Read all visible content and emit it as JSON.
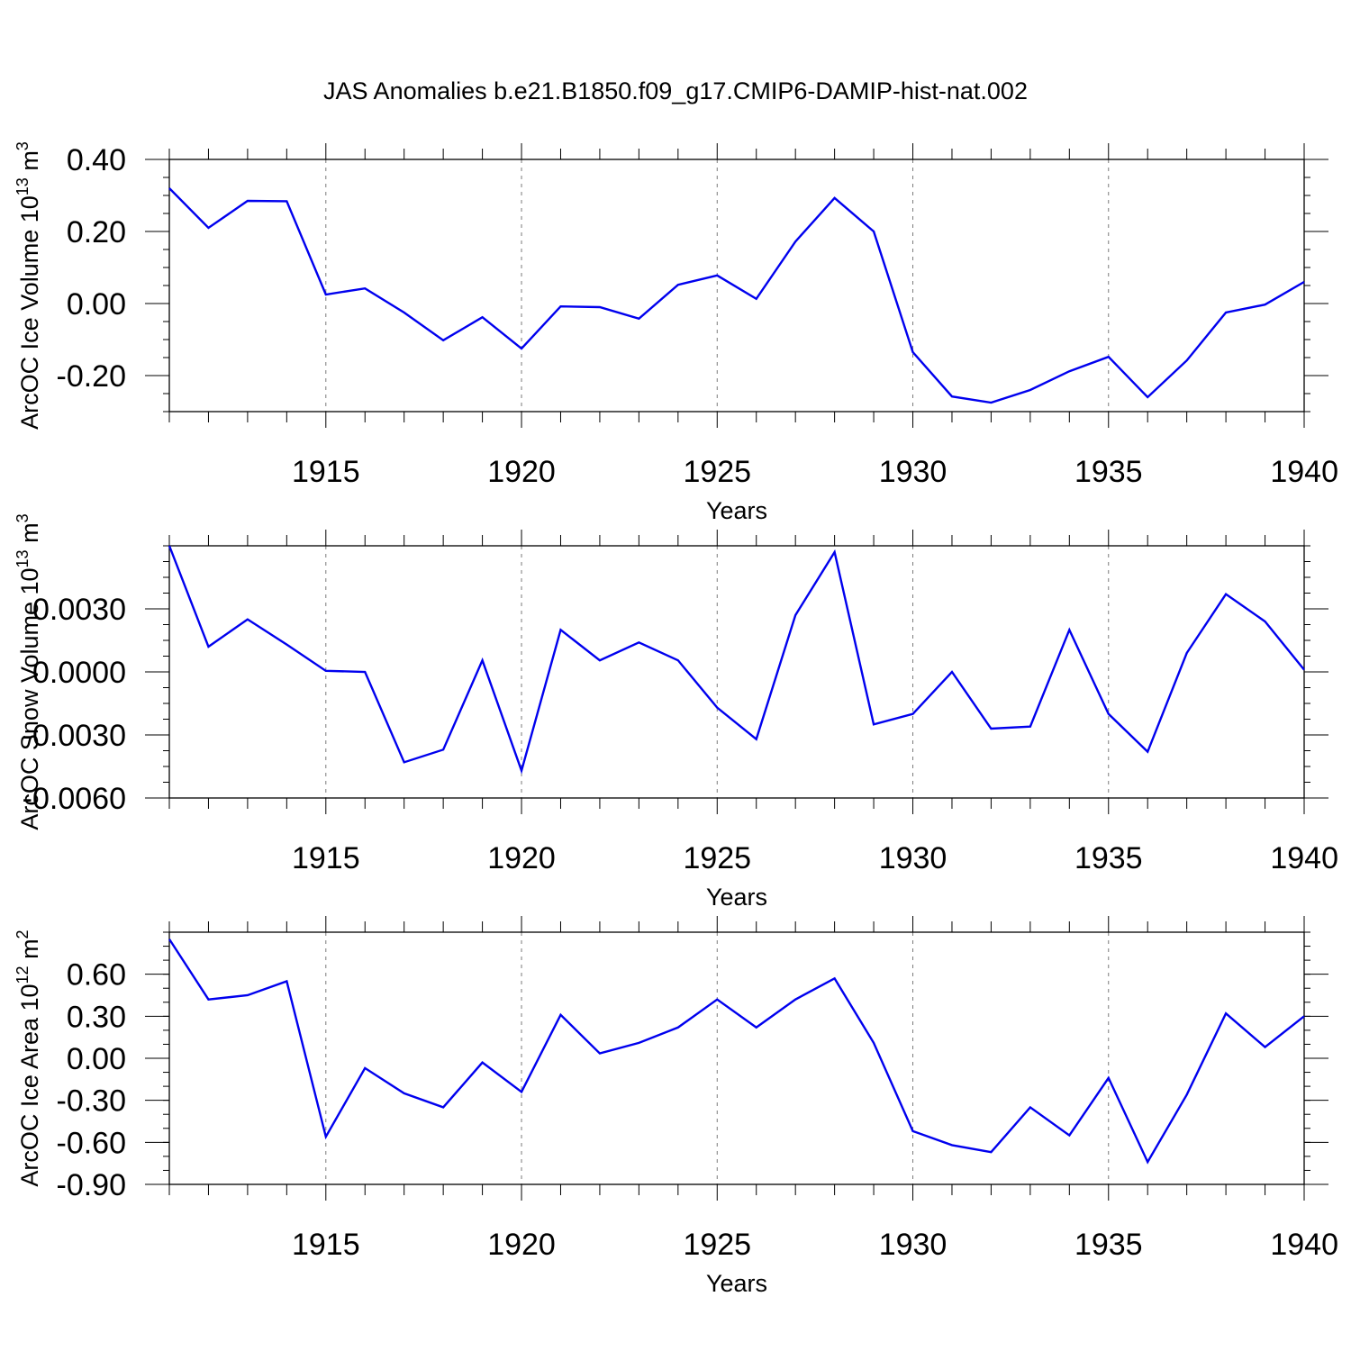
{
  "figure": {
    "title": "JAS Anomalies b.e21.B1850.f09_g17.CMIP6-DAMIP-hist-nat.002",
    "line_color": "#0000ee",
    "grid_color": "#7a7a7a"
  },
  "chart_data": [
    {
      "type": "line",
      "title": "JAS Anomalies b.e21.B1850.f09_g17.CMIP6-DAMIP-hist-nat.002",
      "xlabel": "Years",
      "ylabel": "ArcOC Ice Volume 10",
      "ylabel_sup": "13",
      "ylabel_unit": " m",
      "ylabel_unit_sup": "3",
      "xlim": [
        1911,
        1940
      ],
      "ylim": [
        -0.3,
        0.4
      ],
      "x_ticks": [
        1915,
        1920,
        1925,
        1930,
        1935,
        1940
      ],
      "x_tick_labels": [
        "1915",
        "1920",
        "1925",
        "1930",
        "1935",
        "1940"
      ],
      "y_ticks": [
        0.4,
        0.2,
        0.0,
        -0.2
      ],
      "y_tick_labels": [
        "0.40",
        "0.20",
        "0.00",
        "-0.20"
      ],
      "y_minor_step": 0.05,
      "grid": "vertical dashed at major x ticks",
      "series": [
        {
          "name": "ArcOC Ice Volume",
          "x": [
            1911,
            1912,
            1913,
            1914,
            1915,
            1916,
            1917,
            1918,
            1919,
            1920,
            1921,
            1922,
            1923,
            1924,
            1925,
            1926,
            1927,
            1928,
            1929,
            1930,
            1931,
            1932,
            1933,
            1934,
            1935,
            1936,
            1937,
            1938,
            1939,
            1940
          ],
          "values": [
            0.32,
            0.21,
            0.285,
            0.284,
            0.025,
            0.042,
            -0.025,
            -0.102,
            -0.038,
            -0.125,
            -0.008,
            -0.01,
            -0.042,
            0.052,
            0.078,
            0.013,
            0.172,
            0.293,
            0.2,
            -0.135,
            -0.258,
            -0.275,
            -0.24,
            -0.188,
            -0.148,
            -0.26,
            -0.158,
            -0.025,
            -0.003,
            0.06
          ]
        }
      ]
    },
    {
      "type": "line",
      "xlabel": "Years",
      "ylabel": "ArcOC Snow Volume 10",
      "ylabel_sup": "13",
      "ylabel_unit": " m",
      "ylabel_unit_sup": "3",
      "xlim": [
        1911,
        1940
      ],
      "ylim": [
        -0.006,
        0.006
      ],
      "x_ticks": [
        1915,
        1920,
        1925,
        1930,
        1935,
        1940
      ],
      "x_tick_labels": [
        "1915",
        "1920",
        "1925",
        "1930",
        "1935",
        "1940"
      ],
      "y_ticks": [
        0.003,
        0.0,
        -0.003,
        -0.006
      ],
      "y_tick_labels": [
        "0.0030",
        "0.0000",
        "-0.0030",
        "-0.0060"
      ],
      "y_minor_step": 0.00075,
      "grid": "vertical dashed at major x ticks",
      "series": [
        {
          "name": "ArcOC Snow Volume",
          "x": [
            1911,
            1912,
            1913,
            1914,
            1915,
            1916,
            1917,
            1918,
            1919,
            1920,
            1921,
            1922,
            1923,
            1924,
            1925,
            1926,
            1927,
            1928,
            1929,
            1930,
            1931,
            1932,
            1933,
            1934,
            1935,
            1936,
            1937,
            1938,
            1939,
            1940
          ],
          "values": [
            0.006,
            0.0012,
            0.0025,
            0.0013,
            5e-05,
            0.0,
            -0.0043,
            -0.0037,
            0.00055,
            -0.0047,
            0.002,
            0.00055,
            0.0014,
            0.00055,
            -0.0017,
            -0.0032,
            0.0027,
            0.0057,
            -0.0025,
            -0.002,
            0.0,
            -0.0027,
            -0.0026,
            0.002,
            -0.002,
            -0.0038,
            0.0009,
            0.0037,
            0.0024,
            0.0001
          ]
        }
      ]
    },
    {
      "type": "line",
      "xlabel": "Years",
      "ylabel": "ArcOC Ice Area 10",
      "ylabel_sup": "12",
      "ylabel_unit": " m",
      "ylabel_unit_sup": "2",
      "xlim": [
        1911,
        1940
      ],
      "ylim": [
        -0.9,
        0.9
      ],
      "x_ticks": [
        1915,
        1920,
        1925,
        1930,
        1935,
        1940
      ],
      "x_tick_labels": [
        "1915",
        "1920",
        "1925",
        "1930",
        "1935",
        "1940"
      ],
      "y_ticks": [
        0.6,
        0.3,
        0.0,
        -0.3,
        -0.6,
        -0.9
      ],
      "y_tick_labels": [
        "0.60",
        "0.30",
        "0.00",
        "-0.30",
        "-0.60",
        "-0.90"
      ],
      "y_minor_step": 0.1,
      "grid": "vertical dashed at major x ticks",
      "series": [
        {
          "name": "ArcOC Ice Area",
          "x": [
            1911,
            1912,
            1913,
            1914,
            1915,
            1916,
            1917,
            1918,
            1919,
            1920,
            1921,
            1922,
            1923,
            1924,
            1925,
            1926,
            1927,
            1928,
            1929,
            1930,
            1931,
            1932,
            1933,
            1934,
            1935,
            1936,
            1937,
            1938,
            1939,
            1940
          ],
          "values": [
            0.85,
            0.42,
            0.45,
            0.55,
            -0.56,
            -0.07,
            -0.25,
            -0.35,
            -0.03,
            -0.24,
            0.31,
            0.035,
            0.11,
            0.22,
            0.42,
            0.22,
            0.42,
            0.57,
            0.11,
            -0.52,
            -0.62,
            -0.67,
            -0.35,
            -0.55,
            -0.14,
            -0.74,
            -0.26,
            0.32,
            0.08,
            0.3
          ]
        }
      ]
    }
  ]
}
